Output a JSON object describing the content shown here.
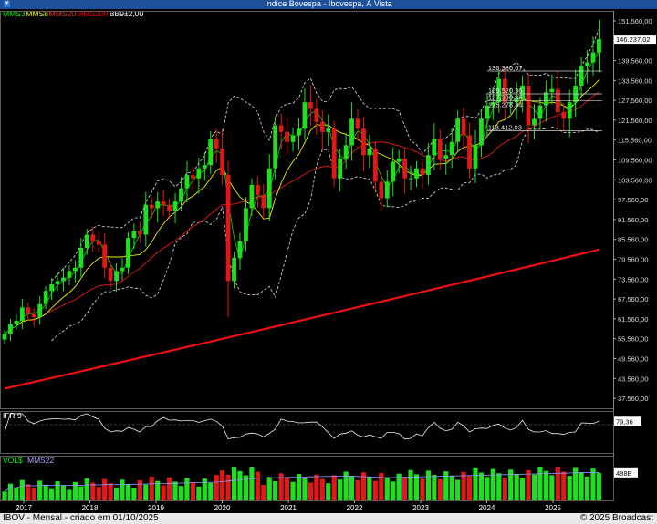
{
  "window": {
    "title": "Índice Bovespa - Ibovespa, À Vista"
  },
  "legend": [
    {
      "label": "MMS3",
      "color": "#00ff00"
    },
    {
      "label": "MMS8",
      "color": "#ffff00"
    },
    {
      "label": "MMS20",
      "color": "#ff3030"
    },
    {
      "label": "MMS200",
      "color": "#ff0000"
    },
    {
      "label": "BB9±2,00",
      "color": "#ffffff"
    }
  ],
  "footer": {
    "left": "IBOV - Mensal - criado em 01/10/2025",
    "right": "© 2025 Broadcast"
  },
  "chart_data": {
    "type": "candlestick",
    "price_axis": {
      "ticks": [
        "151.560,00",
        "145.560,00",
        "139.560,00",
        "133.560,00",
        "127.560,00",
        "121.560,00",
        "115.560,00",
        "109.560,00",
        "103.560,00",
        "97.560,00",
        "91.560,00",
        "85.560,00",
        "79.560,00",
        "73.560,00",
        "67.560,00",
        "61.560,00",
        "55.560,00",
        "49.560,00",
        "43.560,00",
        "37.560,00"
      ],
      "range": [
        34560,
        154560
      ],
      "last_price_label": "146.237,02"
    },
    "x_axis": {
      "years": [
        "2017",
        "2018",
        "2019",
        "2020",
        "2021",
        "2022",
        "2023",
        "2024",
        "2025"
      ]
    },
    "annotations": [
      {
        "text": "136.386,67",
        "value": 136387
      },
      {
        "text": "129.520,36",
        "value": 129520
      },
      {
        "text": "127.399,35",
        "value": 127399
      },
      {
        "text": "125.278,34",
        "value": 125278
      },
      {
        "text": "118.412,03",
        "value": 118412
      }
    ],
    "closes": [
      57,
      60,
      61,
      65,
      63,
      62,
      66,
      70,
      72,
      73,
      74,
      76,
      77,
      83,
      87,
      85,
      84,
      77,
      73,
      76,
      77,
      86,
      88,
      87,
      96,
      95,
      97,
      96,
      94,
      97,
      101,
      105,
      104,
      107,
      108,
      116,
      113,
      105,
      73,
      80,
      85,
      95,
      102,
      99,
      95,
      107,
      120,
      118,
      115,
      117,
      119,
      127,
      125,
      121,
      118,
      119,
      104,
      110,
      114,
      122,
      119,
      111,
      113,
      103,
      98,
      103,
      109,
      110,
      104,
      104,
      107,
      105,
      111,
      116,
      110,
      111,
      115,
      122,
      117,
      107,
      114,
      122,
      126,
      127,
      134,
      127,
      127,
      128,
      132,
      120,
      122,
      126,
      130,
      131,
      124,
      122,
      127,
      132,
      138,
      139,
      142,
      146
    ],
    "rsi": {
      "label": "IFR 9",
      "last_label": "79,36"
    },
    "volume": {
      "label": "VOL$",
      "ma_label": "MMS22",
      "last_label": "488B"
    }
  }
}
